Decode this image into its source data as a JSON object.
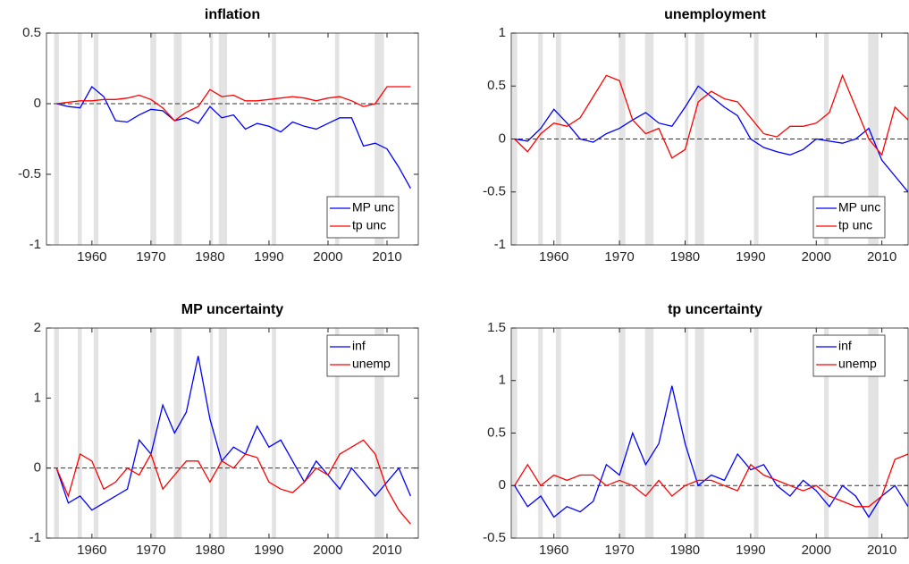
{
  "recessions": [
    [
      1953.6,
      1954.4
    ],
    [
      1957.6,
      1958.3
    ],
    [
      1960.3,
      1961.1
    ],
    [
      1969.9,
      1970.9
    ],
    [
      1973.9,
      1975.2
    ],
    [
      1980.0,
      1980.5
    ],
    [
      1981.5,
      1982.9
    ],
    [
      1990.5,
      1991.2
    ],
    [
      2001.2,
      2001.9
    ],
    [
      2007.9,
      2009.5
    ]
  ],
  "chart_data": [
    {
      "type": "line",
      "title": "inflation",
      "x": [
        1954,
        1956,
        1958,
        1960,
        1962,
        1964,
        1966,
        1968,
        1970,
        1972,
        1974,
        1976,
        1978,
        1980,
        1982,
        1984,
        1986,
        1988,
        1990,
        1992,
        1994,
        1996,
        1998,
        2000,
        2002,
        2004,
        2006,
        2008,
        2010,
        2012,
        2014
      ],
      "series": [
        {
          "name": "MP unc",
          "color": "#0000ff",
          "values": [
            0,
            -0.02,
            -0.03,
            0.12,
            0.05,
            -0.12,
            -0.13,
            -0.08,
            -0.04,
            -0.05,
            -0.12,
            -0.1,
            -0.14,
            -0.02,
            -0.1,
            -0.08,
            -0.18,
            -0.14,
            -0.16,
            -0.2,
            -0.13,
            -0.16,
            -0.18,
            -0.14,
            -0.1,
            -0.1,
            -0.3,
            -0.28,
            -0.32,
            -0.45,
            -0.6
          ]
        },
        {
          "name": "tp unc",
          "color": "#ff0000",
          "values": [
            0,
            0.01,
            0.02,
            0.02,
            0.03,
            0.03,
            0.04,
            0.06,
            0.03,
            -0.03,
            -0.12,
            -0.06,
            -0.02,
            0.1,
            0.05,
            0.06,
            0.02,
            0.02,
            0.03,
            0.04,
            0.05,
            0.04,
            0.02,
            0.04,
            0.05,
            0.02,
            -0.02,
            0,
            0.12,
            0.12,
            0.12
          ]
        }
      ],
      "xlim": [
        1952.3,
        2015.3
      ],
      "xticks": [
        1960,
        1970,
        1980,
        1990,
        2000,
        2010
      ],
      "ylim": [
        -1,
        0.5
      ],
      "yticks": [
        -1,
        -0.5,
        0,
        0.5
      ],
      "legend": "lower right",
      "zero_line": true
    },
    {
      "type": "line",
      "title": "unemployment",
      "x": [
        1954,
        1956,
        1958,
        1960,
        1962,
        1964,
        1966,
        1968,
        1970,
        1972,
        1974,
        1976,
        1978,
        1980,
        1982,
        1984,
        1986,
        1988,
        1990,
        1992,
        1994,
        1996,
        1998,
        2000,
        2002,
        2004,
        2006,
        2008,
        2010,
        2012,
        2014
      ],
      "series": [
        {
          "name": "MP unc",
          "color": "#0000ff",
          "values": [
            0,
            -0.02,
            0.1,
            0.28,
            0.15,
            0,
            -0.03,
            0.05,
            0.1,
            0.18,
            0.25,
            0.15,
            0.12,
            0.3,
            0.5,
            0.4,
            0.3,
            0.22,
            0,
            -0.08,
            -0.12,
            -0.15,
            -0.1,
            0,
            -0.02,
            -0.04,
            0,
            0.1,
            -0.2,
            -0.35,
            -0.5
          ]
        },
        {
          "name": "tp unc",
          "color": "#ff0000",
          "values": [
            0,
            -0.12,
            0.05,
            0.15,
            0.12,
            0.2,
            0.4,
            0.6,
            0.55,
            0.18,
            0.05,
            0.1,
            -0.18,
            -0.1,
            0.35,
            0.45,
            0.38,
            0.35,
            0.2,
            0.05,
            0.02,
            0.12,
            0.12,
            0.15,
            0.25,
            0.6,
            0.3,
            0,
            -0.15,
            0.3,
            0.18
          ]
        }
      ],
      "xlim": [
        1953.5,
        2014
      ],
      "xticks": [
        1960,
        1970,
        1980,
        1990,
        2000,
        2010
      ],
      "ylim": [
        -1,
        1
      ],
      "yticks": [
        -1,
        -0.5,
        0,
        0.5,
        1
      ],
      "legend": "lower right",
      "zero_line": true
    },
    {
      "type": "line",
      "title": "MP uncertainty",
      "x": [
        1954,
        1956,
        1958,
        1960,
        1962,
        1964,
        1966,
        1968,
        1970,
        1972,
        1974,
        1976,
        1978,
        1980,
        1982,
        1984,
        1986,
        1988,
        1990,
        1992,
        1994,
        1996,
        1998,
        2000,
        2002,
        2004,
        2006,
        2008,
        2010,
        2012,
        2014
      ],
      "series": [
        {
          "name": "inf",
          "color": "#0000ff",
          "values": [
            0,
            -0.5,
            -0.4,
            -0.6,
            -0.5,
            -0.4,
            -0.3,
            0.4,
            0.2,
            0.9,
            0.5,
            0.8,
            1.6,
            0.7,
            0.1,
            0.3,
            0.2,
            0.6,
            0.3,
            0.4,
            0.1,
            -0.2,
            0.1,
            -0.1,
            -0.3,
            0,
            -0.2,
            -0.4,
            -0.2,
            0,
            -0.4
          ]
        },
        {
          "name": "unemp",
          "color": "#ff0000",
          "values": [
            0,
            -0.4,
            0.2,
            0.1,
            -0.3,
            -0.2,
            0,
            -0.1,
            0.2,
            -0.3,
            -0.1,
            0.1,
            0.1,
            -0.2,
            0.1,
            0,
            0.2,
            0.15,
            -0.2,
            -0.3,
            -0.35,
            -0.2,
            0,
            -0.1,
            0.2,
            0.3,
            0.4,
            0.2,
            -0.3,
            -0.6,
            -0.8
          ]
        }
      ],
      "xlim": [
        1952.3,
        2015.3
      ],
      "xticks": [
        1960,
        1970,
        1980,
        1990,
        2000,
        2010
      ],
      "ylim": [
        -1,
        2
      ],
      "yticks": [
        -1,
        0,
        1,
        2
      ],
      "legend": "upper right",
      "zero_line": true
    },
    {
      "type": "line",
      "title": "tp uncertainty",
      "x": [
        1954,
        1956,
        1958,
        1960,
        1962,
        1964,
        1966,
        1968,
        1970,
        1972,
        1974,
        1976,
        1978,
        1980,
        1982,
        1984,
        1986,
        1988,
        1990,
        1992,
        1994,
        1996,
        1998,
        2000,
        2002,
        2004,
        2006,
        2008,
        2010,
        2012,
        2014
      ],
      "series": [
        {
          "name": "inf",
          "color": "#0000ff",
          "values": [
            0,
            -0.2,
            -0.1,
            -0.3,
            -0.2,
            -0.25,
            -0.15,
            0.2,
            0.1,
            0.5,
            0.2,
            0.4,
            0.95,
            0.4,
            0,
            0.1,
            0.05,
            0.3,
            0.15,
            0.2,
            0,
            -0.1,
            0.05,
            -0.05,
            -0.2,
            0,
            -0.1,
            -0.3,
            -0.1,
            0,
            -0.2
          ]
        },
        {
          "name": "unemp",
          "color": "#ff0000",
          "values": [
            0,
            0.2,
            0,
            0.1,
            0.05,
            0.1,
            0.1,
            0,
            0.05,
            0,
            -0.1,
            0.05,
            -0.1,
            0,
            0.05,
            0.05,
            0,
            -0.05,
            0.2,
            0.1,
            0.05,
            0,
            -0.05,
            0,
            -0.1,
            -0.15,
            -0.2,
            -0.2,
            -0.1,
            0.25,
            0.3
          ]
        }
      ],
      "xlim": [
        1953.5,
        2014
      ],
      "xticks": [
        1960,
        1970,
        1980,
        1990,
        2000,
        2010
      ],
      "ylim": [
        -0.5,
        1.5
      ],
      "yticks": [
        -0.5,
        0,
        0.5,
        1,
        1.5
      ],
      "legend": "upper right",
      "zero_line": true
    }
  ]
}
